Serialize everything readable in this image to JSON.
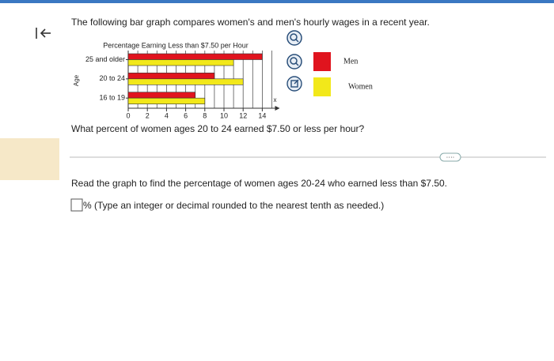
{
  "header": {
    "title": "The following bar graph compares women's and men's hourly wages in a recent year."
  },
  "chart_data": {
    "type": "bar",
    "orientation": "horizontal",
    "title": "Percentage Earning Less than $7.50 per Hour",
    "y_label": "Age",
    "x_label": "x",
    "categories": [
      "25 and older",
      "20 to 24",
      "16 to 19"
    ],
    "series": [
      {
        "name": "Men",
        "color": "#e0141e",
        "values": [
          14,
          9,
          7
        ]
      },
      {
        "name": "Women",
        "color": "#f2e81a",
        "values": [
          11,
          12,
          8
        ]
      }
    ],
    "xlim": [
      0,
      15
    ],
    "xticks": [
      0,
      2,
      4,
      6,
      8,
      10,
      12,
      14
    ],
    "grid": true,
    "grid_step": 1
  },
  "question": "What percent of women ages 20 to 24 earned $7.50 or less per hour?",
  "instruction": "Read the graph to find the percentage of women ages 20-24 who earned less than $7.50.",
  "answer_hint": "% (Type an integer or decimal rounded to the nearest tenth as needed.)"
}
